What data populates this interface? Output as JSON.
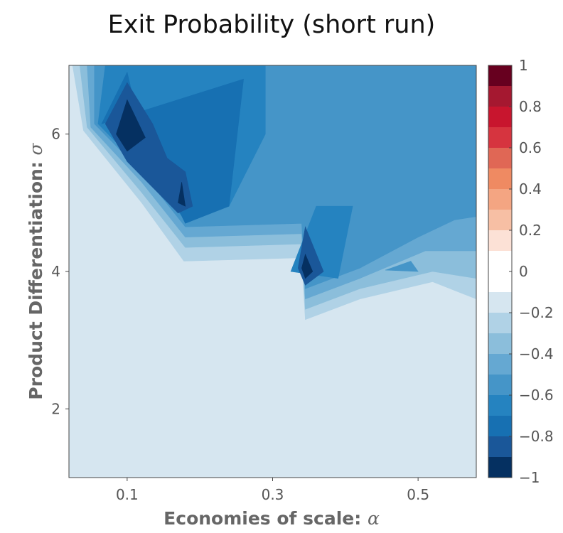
{
  "chart_data": {
    "type": "heatmap",
    "subtype": "filled-contour",
    "title": "Exit Probability (short run)",
    "xlabel": "Economies of scale: ",
    "xlabel_symbol": "α",
    "ylabel": "Product Differentiation: ",
    "ylabel_symbol": "σ",
    "xlim": [
      0.02,
      0.58
    ],
    "ylim": [
      1.0,
      7.0
    ],
    "x_ticks": [
      0.1,
      0.3,
      0.5
    ],
    "x_tick_labels": [
      "0.1",
      "0.3",
      "0.5"
    ],
    "y_ticks": [
      2,
      4,
      6
    ],
    "y_tick_labels": [
      "2",
      "4",
      "6"
    ],
    "grid": false,
    "colorbar": {
      "position": "right",
      "min": -1,
      "max": 1,
      "step": 0.1,
      "ticks": [
        1,
        0.8,
        0.6,
        0.4,
        0.2,
        0,
        -0.2,
        -0.4,
        -0.6,
        -0.8,
        -1
      ],
      "tick_labels": [
        "1",
        "0.8",
        "0.6",
        "0.4",
        "0.2",
        "0",
        "−0.2",
        "−0.4",
        "−0.6",
        "−0.8",
        "−1"
      ],
      "band_colors_top_to_bottom": [
        "#67001f",
        "#a51830",
        "#c8152e",
        "#d6343f",
        "#e06755",
        "#ef8a62",
        "#f4a582",
        "#f7bfa4",
        "#fce1d6",
        "#ffffff",
        "#ffffff",
        "#d6e6f0",
        "#b0d2e6",
        "#8bbedb",
        "#65a8d2",
        "#4595c8",
        "#2583c0",
        "#1770b2",
        "#1a5799",
        "#053061"
      ]
    },
    "regions": [
      {
        "level_max": -0.1,
        "color": "#d6e6f0",
        "outline_x": [
          0.02,
          0.58,
          0.58,
          0.02
        ],
        "outline_y": [
          1.0,
          1.0,
          7.0,
          7.0
        ]
      },
      {
        "level_max": -0.2,
        "color": "#b0d2e6",
        "outline_x": [
          0.025,
          0.04,
          0.12,
          0.178,
          0.34,
          0.345,
          0.42,
          0.52,
          0.58,
          0.58,
          0.025
        ],
        "outline_y": [
          7.0,
          6.05,
          5.0,
          4.15,
          4.2,
          3.3,
          3.6,
          3.85,
          3.6,
          7.0,
          7.0
        ]
      },
      {
        "level_max": -0.3,
        "color": "#8bbedb",
        "outline_x": [
          0.035,
          0.045,
          0.12,
          0.18,
          0.34,
          0.345,
          0.42,
          0.52,
          0.58,
          0.58,
          0.035
        ],
        "outline_y": [
          7.0,
          6.1,
          5.15,
          4.35,
          4.4,
          3.45,
          3.75,
          4.0,
          3.9,
          7.0,
          7.0
        ]
      },
      {
        "level_max": -0.4,
        "color": "#65a8d2",
        "outline_x": [
          0.045,
          0.05,
          0.12,
          0.18,
          0.34,
          0.345,
          0.42,
          0.51,
          0.58,
          0.58,
          0.045
        ],
        "outline_y": [
          7.0,
          6.1,
          5.3,
          4.5,
          4.55,
          3.6,
          3.9,
          4.3,
          4.3,
          7.0,
          7.0
        ]
      },
      {
        "level_max": -0.5,
        "color": "#4595c8",
        "outline_x": [
          0.055,
          0.055,
          0.12,
          0.18,
          0.34,
          0.345,
          0.42,
          0.5,
          0.55,
          0.58,
          0.58,
          0.055
        ],
        "outline_y": [
          7.0,
          6.15,
          5.45,
          4.65,
          4.7,
          3.75,
          4.05,
          4.5,
          4.75,
          4.8,
          7.0,
          7.0
        ]
      },
      {
        "level_max": -0.6,
        "color": "#2583c0",
        "outline_x": [
          0.07,
          0.06,
          0.12,
          0.18,
          0.24,
          0.29,
          0.29,
          0.07
        ],
        "outline_y": [
          7.0,
          6.15,
          5.5,
          4.75,
          4.95,
          6.0,
          7.0,
          7.0
        ]
      },
      {
        "level_max": -0.6,
        "color": "#2583c0",
        "outline_x": [
          0.325,
          0.36,
          0.41,
          0.39,
          0.325
        ],
        "outline_y": [
          4.0,
          4.95,
          4.95,
          3.9,
          4.0
        ]
      },
      {
        "level_max": -0.7,
        "color": "#1770b2",
        "outline_x": [
          0.065,
          0.1,
          0.12,
          0.18,
          0.24,
          0.26,
          0.065
        ],
        "outline_y": [
          6.15,
          6.9,
          6.0,
          4.7,
          4.95,
          6.8,
          6.15
        ]
      },
      {
        "level_max": -0.8,
        "color": "#1a5799",
        "outline_x": [
          0.07,
          0.1,
          0.135,
          0.155,
          0.18,
          0.19,
          0.17,
          0.1,
          0.07
        ],
        "outline_y": [
          6.15,
          6.75,
          6.15,
          5.65,
          5.45,
          4.95,
          4.85,
          5.6,
          6.15
        ]
      },
      {
        "level_max": -0.8,
        "color": "#1a5799",
        "outline_x": [
          0.335,
          0.345,
          0.37,
          0.345,
          0.335
        ],
        "outline_y": [
          4.05,
          4.65,
          4.0,
          3.8,
          4.05
        ]
      },
      {
        "level_max": -0.9,
        "color": "#053061",
        "outline_x": [
          0.085,
          0.1,
          0.125,
          0.1,
          0.085
        ],
        "outline_y": [
          6.0,
          6.5,
          5.95,
          5.75,
          6.0
        ]
      },
      {
        "level_max": -0.9,
        "color": "#053061",
        "outline_x": [
          0.17,
          0.175,
          0.18,
          0.17
        ],
        "outline_y": [
          5.0,
          5.3,
          4.95,
          5.0
        ]
      },
      {
        "level_max": -0.9,
        "color": "#053061",
        "outline_x": [
          0.34,
          0.345,
          0.355,
          0.345,
          0.34
        ],
        "outline_y": [
          4.05,
          4.25,
          4.0,
          3.9,
          4.05
        ]
      },
      {
        "level_max": -0.5,
        "color": "#4595c8",
        "outline_x": [
          0.455,
          0.49,
          0.5,
          0.455
        ],
        "outline_y": [
          4.02,
          4.15,
          4.0,
          4.02
        ]
      }
    ]
  }
}
